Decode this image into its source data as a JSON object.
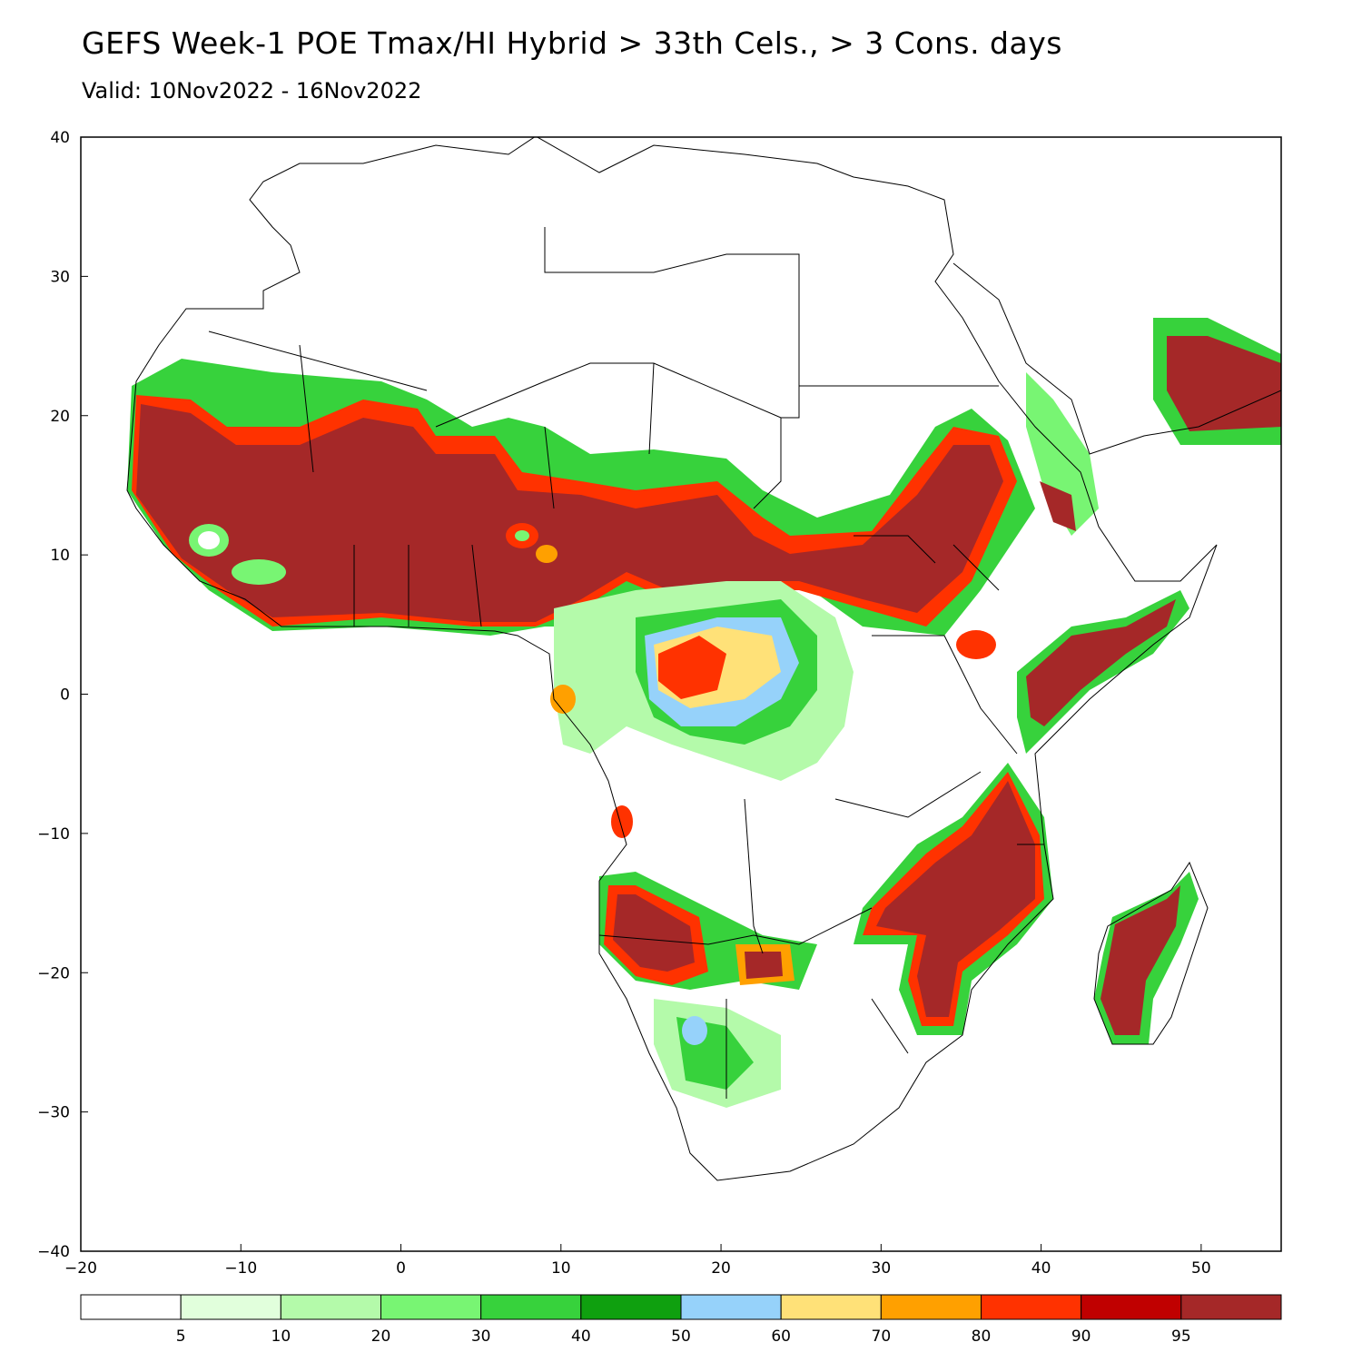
{
  "title": "GEFS Week-1 POE Tmax/HI Hybrid > 33th Cels., > 3 Cons. days",
  "subtitle": "Valid: 10Nov2022 - 16Nov2022",
  "map": {
    "lon_range": [
      -20,
      55
    ],
    "lat_range": [
      -40,
      40
    ],
    "lon_ticks": [
      -20,
      -10,
      0,
      10,
      20,
      30,
      40,
      50
    ],
    "lat_ticks": [
      40,
      30,
      20,
      10,
      0,
      -10,
      -20,
      -30,
      -40
    ],
    "lon_tick_labels": [
      "−20",
      "−10",
      "0",
      "10",
      "20",
      "30",
      "40",
      "50"
    ],
    "lat_tick_labels": [
      "40",
      "30",
      "20",
      "10",
      "0",
      "−10",
      "−20",
      "−30",
      "−40"
    ]
  },
  "colorbar": {
    "colors": [
      "#ffffff",
      "#e1ffdc",
      "#b4faaa",
      "#78f573",
      "#37d23c",
      "#0fa00f",
      "#96d2fa",
      "#ffe178",
      "#ffa000",
      "#ff3200",
      "#c00000",
      "#a52828"
    ],
    "labels": [
      "5",
      "10",
      "20",
      "30",
      "40",
      "50",
      "60",
      "70",
      "80",
      "90",
      "95"
    ]
  }
}
